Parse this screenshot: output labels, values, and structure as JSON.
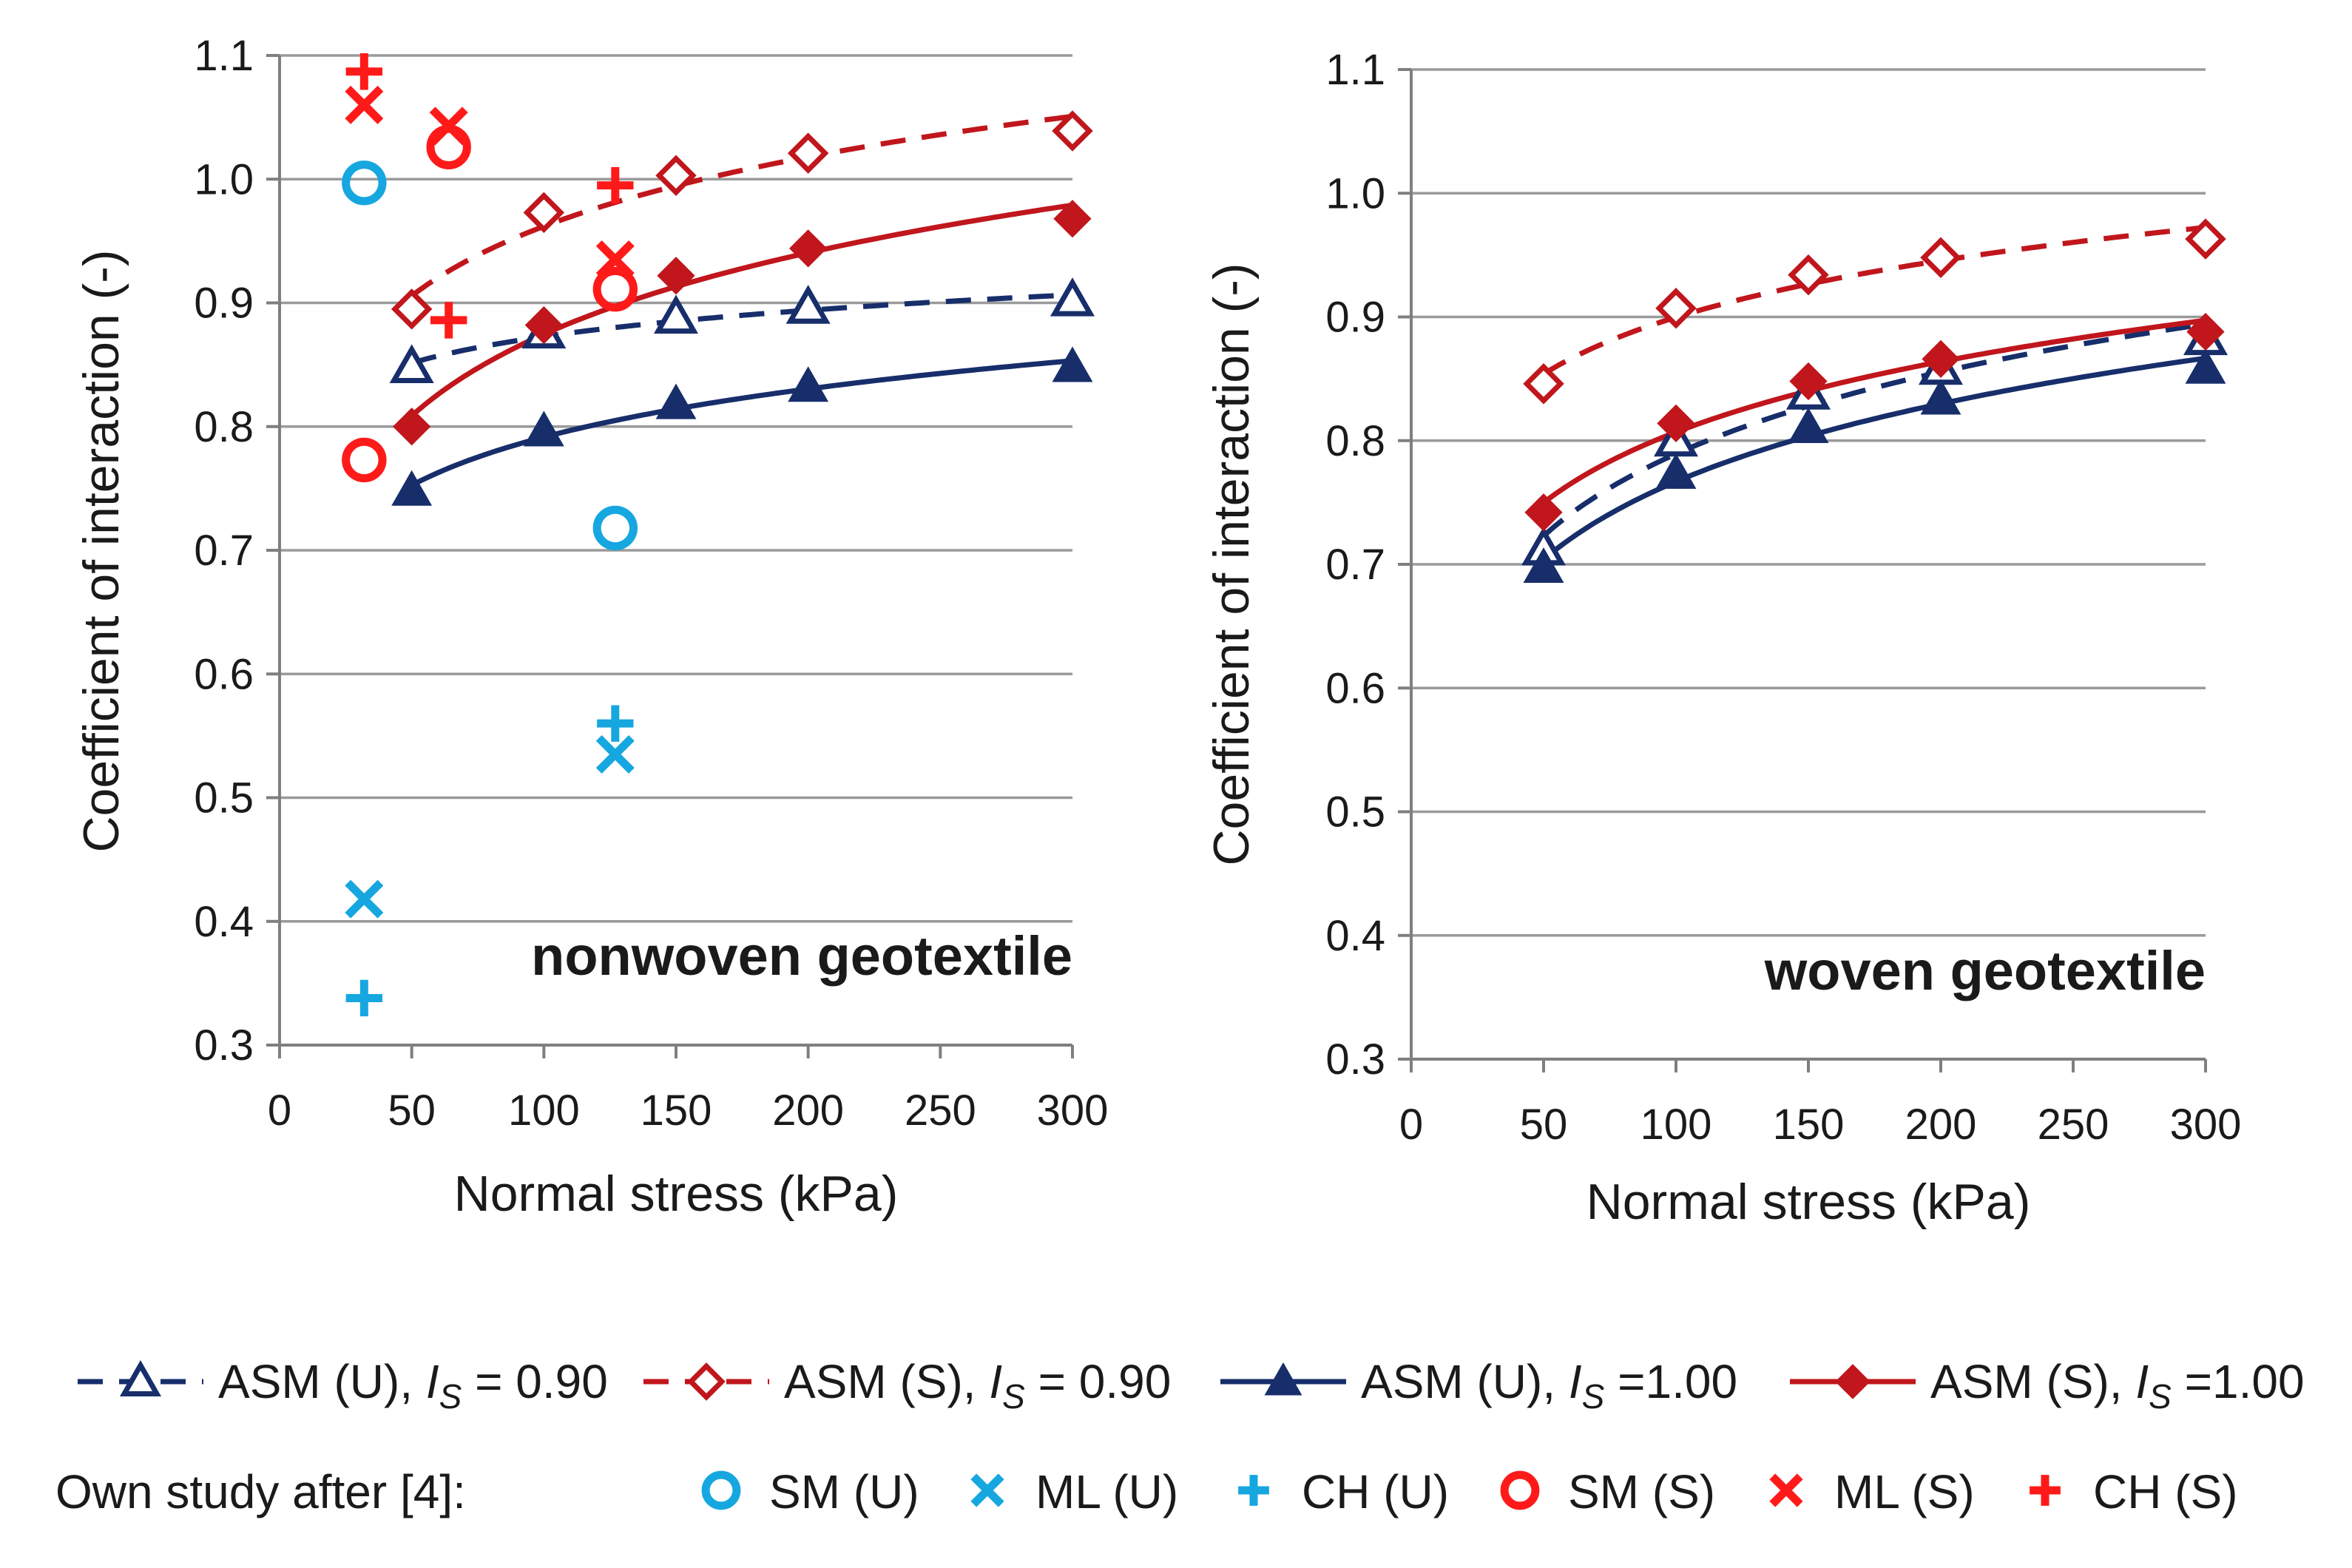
{
  "colors": {
    "navy": "#172E6B",
    "darkred": "#C0161C",
    "cyan": "#16A7E0",
    "red": "#FF1A1A",
    "grid": "#9a9a9a",
    "axis": "#7f7f7f"
  },
  "chart_data": [
    {
      "type": "line",
      "title": "nonwoven geotextile",
      "xlabel": "Normal stress (kPa)",
      "ylabel": "Coefficient of interaction (-)",
      "xlim": [
        0,
        300
      ],
      "ylim": [
        0.3,
        1.1
      ],
      "xticks": [
        "0",
        "50",
        "100",
        "150",
        "200",
        "250",
        "300"
      ],
      "yticks": [
        "0.3",
        "0.4",
        "0.5",
        "0.6",
        "0.7",
        "0.8",
        "0.9",
        "1.0",
        "1.1"
      ],
      "grid": true,
      "series": [
        {
          "id": "asm_u_090",
          "x": [
            50,
            100,
            150,
            200,
            300
          ],
          "y": [
            0.848,
            0.876,
            0.888,
            0.896,
            0.902
          ]
        },
        {
          "id": "asm_s_090",
          "x": [
            50,
            100,
            150,
            200,
            300
          ],
          "y": [
            0.895,
            0.973,
            1.003,
            1.021,
            1.039
          ]
        },
        {
          "id": "asm_u_100",
          "x": [
            50,
            100,
            150,
            200,
            300
          ],
          "y": [
            0.748,
            0.796,
            0.818,
            0.832,
            0.848
          ]
        },
        {
          "id": "asm_s_100",
          "x": [
            50,
            100,
            150,
            200,
            300
          ],
          "y": [
            0.8,
            0.882,
            0.922,
            0.944,
            0.968
          ]
        },
        {
          "id": "sm_u",
          "x": [
            32,
            127
          ],
          "y": [
            0.997,
            0.718
          ]
        },
        {
          "id": "ml_u",
          "x": [
            32,
            127
          ],
          "y": [
            0.418,
            0.535
          ]
        },
        {
          "id": "ch_u",
          "x": [
            32,
            127
          ],
          "y": [
            0.338,
            0.56
          ]
        },
        {
          "id": "sm_s",
          "x": [
            32,
            64,
            127
          ],
          "y": [
            0.773,
            1.026,
            0.911
          ]
        },
        {
          "id": "ml_s",
          "x": [
            32,
            64,
            127
          ],
          "y": [
            1.06,
            1.043,
            0.935
          ]
        },
        {
          "id": "ch_s",
          "x": [
            32,
            64,
            127
          ],
          "y": [
            1.087,
            0.886,
            0.995
          ]
        }
      ]
    },
    {
      "type": "line",
      "title": "woven geotextile",
      "xlabel": "Normal stress (kPa)",
      "ylabel": "Coefficient of interaction (-)",
      "xlim": [
        0,
        300
      ],
      "ylim": [
        0.3,
        1.1
      ],
      "xticks": [
        "0",
        "50",
        "100",
        "150",
        "200",
        "250",
        "300"
      ],
      "yticks": [
        "0.3",
        "0.4",
        "0.5",
        "0.6",
        "0.7",
        "0.8",
        "0.9",
        "1.0",
        "1.1"
      ],
      "grid": true,
      "series": [
        {
          "id": "asm_u_090",
          "x": [
            50,
            100,
            150,
            200,
            300
          ],
          "y": [
            0.712,
            0.8,
            0.838,
            0.858,
            0.882
          ]
        },
        {
          "id": "asm_s_090",
          "x": [
            50,
            100,
            150,
            200,
            300
          ],
          "y": [
            0.846,
            0.907,
            0.934,
            0.948,
            0.963
          ]
        },
        {
          "id": "asm_u_100",
          "x": [
            50,
            100,
            150,
            200,
            300
          ],
          "y": [
            0.697,
            0.773,
            0.81,
            0.833,
            0.858
          ]
        },
        {
          "id": "asm_s_100",
          "x": [
            50,
            100,
            150,
            200,
            300
          ],
          "y": [
            0.742,
            0.814,
            0.848,
            0.866,
            0.888
          ]
        }
      ]
    }
  ],
  "legend": {
    "row1": [
      {
        "id": "asm_u_090",
        "label": "ASM (U), ",
        "sym": "I",
        "sub": "S",
        "eq": " = 0.90"
      },
      {
        "id": "asm_s_090",
        "label": "ASM (S), ",
        "sym": "I",
        "sub": "S",
        "eq": " = 0.90"
      },
      {
        "id": "asm_u_100",
        "label": "ASM (U),  ",
        "sym": "I",
        "sub": "S",
        "eq": " =1.00"
      },
      {
        "id": "asm_s_100",
        "label": "ASM (S), ",
        "sym": "I",
        "sub": "S",
        "eq": " =1.00"
      }
    ],
    "row2_prefix": "Own study after  [4]:",
    "row2": [
      {
        "id": "sm_u",
        "label": "SM (U)"
      },
      {
        "id": "ml_u",
        "label": "ML (U)"
      },
      {
        "id": "ch_u",
        "label": "CH (U)"
      },
      {
        "id": "sm_s",
        "label": "SM (S)"
      },
      {
        "id": "ml_s",
        "label": "ML (S)"
      },
      {
        "id": "ch_s",
        "label": "CH (S)"
      }
    ]
  }
}
